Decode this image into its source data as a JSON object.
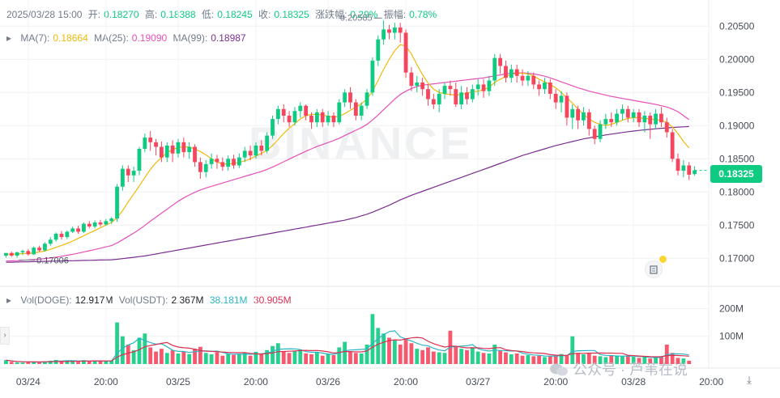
{
  "header": {
    "date": "2025/03/28 15:00",
    "open_label": "开:",
    "open": "0.18270",
    "high_label": "高:",
    "high": "0.18388",
    "low_label": "低:",
    "low": "0.18245",
    "close_label": "收:",
    "close": "0.18325",
    "change_label": "涨跌幅:",
    "change": "0.29%",
    "amp_label": "振幅:",
    "amp": "0.78%"
  },
  "ma": {
    "ma7_label": "MA(7):",
    "ma7": "0.18664",
    "ma25_label": "MA(25):",
    "ma25": "0.19090",
    "ma99_label": "MA(99):",
    "ma99": "0.18987"
  },
  "vol": {
    "doge_label": "Vol(DOGE):",
    "doge": "12.917M",
    "usdt_label": "Vol(USDT):",
    "usdt": "2.367M",
    "usdt_ma_a": "38.181M",
    "usdt_ma_b": "30.905M"
  },
  "last_price": "0.18325",
  "watermark": "BINANCE",
  "source_watermark": "公众号 · 芦苇在说",
  "colors": {
    "up": "#0ecb81",
    "down": "#f6465d",
    "ma7": "#f0b90b",
    "ma25": "#e650b8",
    "ma99": "#7a2f8f",
    "vol_ma_a": "#2bb4c7",
    "vol_ma_b": "#d9304f"
  },
  "chart_data": {
    "type": "candlestick",
    "interval": "1h",
    "ylim": [
      0.1665,
      0.2065
    ],
    "y_ticks": [
      "0.20500",
      "0.20000",
      "0.19500",
      "0.19000",
      "0.18500",
      "0.18000",
      "0.17500",
      "0.17000"
    ],
    "y_tick_values": [
      0.205,
      0.2,
      0.195,
      0.19,
      0.185,
      0.18,
      0.175,
      0.17
    ],
    "x_ticks": [
      "03/24",
      "20:00",
      "03/25",
      "20:00",
      "03/26",
      "20:00",
      "03/27",
      "20:00",
      "03/28",
      "20:00"
    ],
    "x_tick_index": [
      4,
      18,
      31,
      45,
      58,
      72,
      85,
      99,
      113,
      127
    ],
    "annotations": {
      "high_label": "0.20585",
      "high_index": 68,
      "low_label": "0.17006",
      "low_index": 2
    },
    "vol_ylim": [
      0,
      210
    ],
    "vol_ticks": [
      "200M",
      "100M"
    ],
    "vol_tick_values": [
      200,
      100
    ],
    "candles": [
      [
        0.1704,
        0.1708,
        0.1708,
        0.1701
      ],
      [
        0.1708,
        0.1704,
        0.171,
        0.1702
      ],
      [
        0.1704,
        0.1709,
        0.171,
        0.1701
      ],
      [
        0.1709,
        0.1711,
        0.1713,
        0.1705
      ],
      [
        0.1711,
        0.1706,
        0.1714,
        0.1704
      ],
      [
        0.1706,
        0.1716,
        0.1718,
        0.1705
      ],
      [
        0.1716,
        0.1712,
        0.1719,
        0.171
      ],
      [
        0.1712,
        0.1722,
        0.1724,
        0.171
      ],
      [
        0.1722,
        0.1728,
        0.1732,
        0.1719
      ],
      [
        0.1728,
        0.1737,
        0.1739,
        0.1725
      ],
      [
        0.1737,
        0.1732,
        0.1741,
        0.1728
      ],
      [
        0.1732,
        0.174,
        0.1742,
        0.1729
      ],
      [
        0.174,
        0.1745,
        0.1748,
        0.1738
      ],
      [
        0.1745,
        0.174,
        0.1749,
        0.1737
      ],
      [
        0.174,
        0.1752,
        0.1754,
        0.1738
      ],
      [
        0.1752,
        0.1748,
        0.1756,
        0.1745
      ],
      [
        0.1748,
        0.1754,
        0.1757,
        0.1745
      ],
      [
        0.1754,
        0.1751,
        0.1758,
        0.1748
      ],
      [
        0.1751,
        0.1756,
        0.1759,
        0.1749
      ],
      [
        0.1756,
        0.176,
        0.1762,
        0.1752
      ],
      [
        0.176,
        0.1808,
        0.1812,
        0.1755
      ],
      [
        0.1808,
        0.1835,
        0.184,
        0.1802
      ],
      [
        0.1835,
        0.1825,
        0.184,
        0.1815
      ],
      [
        0.1825,
        0.1832,
        0.1838,
        0.1815
      ],
      [
        0.1832,
        0.1865,
        0.1868,
        0.1825
      ],
      [
        0.1865,
        0.1882,
        0.1888,
        0.186
      ],
      [
        0.1882,
        0.1875,
        0.1892,
        0.1862
      ],
      [
        0.1875,
        0.1868,
        0.188,
        0.1855
      ],
      [
        0.1868,
        0.1852,
        0.1876,
        0.1845
      ],
      [
        0.1852,
        0.187,
        0.1875,
        0.1845
      ],
      [
        0.187,
        0.1858,
        0.1878,
        0.1845
      ],
      [
        0.1858,
        0.1875,
        0.188,
        0.1852
      ],
      [
        0.1875,
        0.186,
        0.1882,
        0.1852
      ],
      [
        0.186,
        0.1868,
        0.1875,
        0.185
      ],
      [
        0.1868,
        0.1845,
        0.1872,
        0.1838
      ],
      [
        0.1845,
        0.183,
        0.1852,
        0.182
      ],
      [
        0.183,
        0.1842,
        0.1848,
        0.1822
      ],
      [
        0.1842,
        0.185,
        0.1858,
        0.1835
      ],
      [
        0.185,
        0.1845,
        0.1856,
        0.1835
      ],
      [
        0.1845,
        0.1838,
        0.1852,
        0.1832
      ],
      [
        0.1838,
        0.185,
        0.1855,
        0.1832
      ],
      [
        0.185,
        0.184,
        0.1856,
        0.1835
      ],
      [
        0.184,
        0.1852,
        0.1858,
        0.1836
      ],
      [
        0.1852,
        0.1862,
        0.1868,
        0.1845
      ],
      [
        0.1862,
        0.1855,
        0.187,
        0.1848
      ],
      [
        0.1855,
        0.187,
        0.1875,
        0.185
      ],
      [
        0.187,
        0.1862,
        0.1878,
        0.1855
      ],
      [
        0.1862,
        0.1885,
        0.189,
        0.1858
      ],
      [
        0.1885,
        0.191,
        0.1915,
        0.188
      ],
      [
        0.191,
        0.1925,
        0.193,
        0.1902
      ],
      [
        0.1925,
        0.1915,
        0.1932,
        0.1905
      ],
      [
        0.1915,
        0.1905,
        0.1922,
        0.1898
      ],
      [
        0.1905,
        0.1922,
        0.1928,
        0.19
      ],
      [
        0.1922,
        0.193,
        0.1935,
        0.1912
      ],
      [
        0.193,
        0.1915,
        0.1932,
        0.1908
      ],
      [
        0.1915,
        0.1905,
        0.192,
        0.1895
      ],
      [
        0.1905,
        0.192,
        0.1925,
        0.1898
      ],
      [
        0.192,
        0.1905,
        0.1925,
        0.1898
      ],
      [
        0.1905,
        0.1915,
        0.1922,
        0.19
      ],
      [
        0.1915,
        0.1905,
        0.192,
        0.1898
      ],
      [
        0.1905,
        0.1935,
        0.194,
        0.1902
      ],
      [
        0.1935,
        0.195,
        0.1955,
        0.1928
      ],
      [
        0.195,
        0.1935,
        0.1958,
        0.1925
      ],
      [
        0.1935,
        0.1915,
        0.194,
        0.1908
      ],
      [
        0.1915,
        0.193,
        0.1935,
        0.1908
      ],
      [
        0.193,
        0.195,
        0.1955,
        0.1925
      ],
      [
        0.195,
        0.1998,
        0.2003,
        0.1945
      ],
      [
        0.1998,
        0.203,
        0.2036,
        0.199
      ],
      [
        0.203,
        0.2045,
        0.20585,
        0.2022
      ],
      [
        0.2045,
        0.204,
        0.2052,
        0.203
      ],
      [
        0.204,
        0.2048,
        0.2055,
        0.203
      ],
      [
        0.2048,
        0.204,
        0.2055,
        0.2025
      ],
      [
        0.204,
        0.198,
        0.2045,
        0.1972
      ],
      [
        0.198,
        0.196,
        0.1988,
        0.1952
      ],
      [
        0.196,
        0.1965,
        0.1975,
        0.195
      ],
      [
        0.1965,
        0.1955,
        0.1972,
        0.1945
      ],
      [
        0.1955,
        0.194,
        0.1962,
        0.193
      ],
      [
        0.194,
        0.1932,
        0.1948,
        0.1925
      ],
      [
        0.1932,
        0.1948,
        0.1955,
        0.192
      ],
      [
        0.1948,
        0.196,
        0.1965,
        0.194
      ],
      [
        0.196,
        0.1955,
        0.1968,
        0.1945
      ],
      [
        0.1955,
        0.1932,
        0.1965,
        0.1928
      ],
      [
        0.1932,
        0.195,
        0.196,
        0.1925
      ],
      [
        0.195,
        0.194,
        0.1958,
        0.1932
      ],
      [
        0.194,
        0.1955,
        0.1962,
        0.1935
      ],
      [
        0.1955,
        0.1962,
        0.197,
        0.1945
      ],
      [
        0.1962,
        0.1952,
        0.197,
        0.1942
      ],
      [
        0.1952,
        0.1968,
        0.1975,
        0.1945
      ],
      [
        0.1968,
        0.2002,
        0.2008,
        0.196
      ],
      [
        0.2002,
        0.199,
        0.2008,
        0.1978
      ],
      [
        0.199,
        0.1972,
        0.1998,
        0.1965
      ],
      [
        0.1972,
        0.1985,
        0.1992,
        0.1965
      ],
      [
        0.1985,
        0.1975,
        0.1992,
        0.1965
      ],
      [
        0.1975,
        0.1968,
        0.1985,
        0.196
      ],
      [
        0.1968,
        0.1975,
        0.1982,
        0.196
      ],
      [
        0.1975,
        0.1962,
        0.198,
        0.1955
      ],
      [
        0.1962,
        0.1955,
        0.1968,
        0.1945
      ],
      [
        0.1955,
        0.1965,
        0.1972,
        0.1948
      ],
      [
        0.1965,
        0.1948,
        0.197,
        0.194
      ],
      [
        0.1948,
        0.1935,
        0.1955,
        0.1925
      ],
      [
        0.1935,
        0.1945,
        0.1952,
        0.192
      ],
      [
        0.1945,
        0.1912,
        0.195,
        0.19
      ],
      [
        0.1912,
        0.1925,
        0.1932,
        0.1895
      ],
      [
        0.1925,
        0.1908,
        0.193,
        0.1895
      ],
      [
        0.1908,
        0.192,
        0.1928,
        0.19
      ],
      [
        0.192,
        0.1895,
        0.1925,
        0.1885
      ],
      [
        0.1895,
        0.188,
        0.19,
        0.1872
      ],
      [
        0.188,
        0.1902,
        0.1908,
        0.1875
      ],
      [
        0.1902,
        0.191,
        0.1918,
        0.1895
      ],
      [
        0.191,
        0.1905,
        0.192,
        0.1898
      ],
      [
        0.1905,
        0.1918,
        0.1925,
        0.19
      ],
      [
        0.1918,
        0.1925,
        0.1932,
        0.1908
      ],
      [
        0.1925,
        0.1912,
        0.193,
        0.1905
      ],
      [
        0.1912,
        0.192,
        0.1925,
        0.1905
      ],
      [
        0.192,
        0.1905,
        0.1925,
        0.1898
      ],
      [
        0.1905,
        0.1915,
        0.1922,
        0.189
      ],
      [
        0.1915,
        0.1902,
        0.192,
        0.188
      ],
      [
        0.1902,
        0.1918,
        0.1925,
        0.1895
      ],
      [
        0.1918,
        0.1905,
        0.1928,
        0.1898
      ],
      [
        0.1905,
        0.189,
        0.1912,
        0.1882
      ],
      [
        0.189,
        0.185,
        0.1895,
        0.1845
      ],
      [
        0.185,
        0.1832,
        0.1858,
        0.1825
      ],
      [
        0.1832,
        0.184,
        0.1848,
        0.1822
      ],
      [
        0.184,
        0.1826,
        0.1845,
        0.1818
      ],
      [
        0.1827,
        0.18325,
        0.18388,
        0.18245
      ]
    ],
    "volume": [
      14,
      8,
      6,
      5,
      7,
      9,
      6,
      10,
      12,
      15,
      11,
      13,
      9,
      8,
      14,
      10,
      12,
      9,
      11,
      13,
      150,
      100,
      70,
      50,
      95,
      110,
      60,
      45,
      55,
      40,
      50,
      38,
      44,
      36,
      55,
      62,
      40,
      35,
      42,
      30,
      38,
      33,
      36,
      40,
      30,
      44,
      35,
      50,
      65,
      75,
      45,
      40,
      48,
      52,
      38,
      35,
      42,
      30,
      36,
      32,
      60,
      80,
      45,
      40,
      38,
      70,
      180,
      130,
      110,
      95,
      85,
      70,
      90,
      75,
      55,
      50,
      60,
      45,
      42,
      40,
      120,
      65,
      55,
      50,
      60,
      45,
      40,
      38,
      70,
      50,
      42,
      35,
      38,
      30,
      32,
      28,
      30,
      25,
      28,
      33,
      36,
      30,
      100,
      40,
      35,
      38,
      30,
      28,
      25,
      32,
      30,
      28,
      30,
      26,
      22,
      25,
      20,
      24,
      28,
      70,
      40,
      22,
      20,
      12
    ],
    "ma7": [
      0.1706,
      0.17062,
      0.17065,
      0.1707,
      0.17075,
      0.17082,
      0.17095,
      0.1711,
      0.17135,
      0.17165,
      0.17195,
      0.17225,
      0.1726,
      0.173,
      0.1734,
      0.1738,
      0.1742,
      0.1746,
      0.175,
      0.1754,
      0.1761,
      0.1772,
      0.1785,
      0.1797,
      0.1809,
      0.1822,
      0.1834,
      0.1844,
      0.1852,
      0.1859,
      0.1864,
      0.1867,
      0.1868,
      0.18675,
      0.1865,
      0.1861,
      0.1856,
      0.185,
      0.1845,
      0.18425,
      0.1842,
      0.1843,
      0.18445,
      0.1847,
      0.185,
      0.1854,
      0.1858,
      0.1863,
      0.187,
      0.1879,
      0.1888,
      0.1896,
      0.1903,
      0.191,
      0.1915,
      0.1917,
      0.1917,
      0.1916,
      0.1914,
      0.1913,
      0.1914,
      0.1918,
      0.1923,
      0.1928,
      0.1933,
      0.194,
      0.1952,
      0.1968,
      0.1985,
      0.2,
      0.2013,
      0.2022,
      0.202,
      0.2008,
      0.1992,
      0.1977,
      0.1964,
      0.1955,
      0.195,
      0.1948,
      0.1947,
      0.1946,
      0.1947,
      0.1949,
      0.1951,
      0.1952,
      0.1954,
      0.1958,
      0.1965,
      0.197,
      0.1974,
      0.1977,
      0.1979,
      0.1979,
      0.1978,
      0.1975,
      0.197,
      0.1966,
      0.1962,
      0.1957,
      0.195,
      0.1942,
      0.1934,
      0.1925,
      0.1917,
      0.191,
      0.1905,
      0.1902,
      0.19,
      0.1902,
      0.1905,
      0.1908,
      0.1911,
      0.1912,
      0.1912,
      0.1911,
      0.191,
      0.1909,
      0.1908,
      0.1905,
      0.1898,
      0.1888,
      0.1876,
      0.18664
    ],
    "ma25": [
      0.1696,
      0.16962,
      0.16965,
      0.1697,
      0.16975,
      0.1698,
      0.16988,
      0.16996,
      0.17005,
      0.17016,
      0.1703,
      0.17045,
      0.1706,
      0.17078,
      0.17096,
      0.17114,
      0.17133,
      0.17152,
      0.17172,
      0.17192,
      0.1723,
      0.1728,
      0.1733,
      0.1738,
      0.17435,
      0.17495,
      0.1756,
      0.1762,
      0.1768,
      0.1774,
      0.178,
      0.1786,
      0.1791,
      0.17955,
      0.17995,
      0.1803,
      0.1806,
      0.18085,
      0.1811,
      0.18135,
      0.1816,
      0.18185,
      0.1821,
      0.18235,
      0.1826,
      0.18285,
      0.1831,
      0.1834,
      0.18375,
      0.18415,
      0.18455,
      0.18495,
      0.18535,
      0.18575,
      0.18615,
      0.1865,
      0.18685,
      0.18715,
      0.18745,
      0.18775,
      0.1881,
      0.1885,
      0.1889,
      0.1893,
      0.1897,
      0.1902,
      0.19085,
      0.1916,
      0.1924,
      0.1932,
      0.194,
      0.1947,
      0.1952,
      0.1956,
      0.1959,
      0.1961,
      0.1962,
      0.1963,
      0.1964,
      0.1965,
      0.1966,
      0.1967,
      0.1968,
      0.1969,
      0.197,
      0.1971,
      0.1972,
      0.19735,
      0.1975,
      0.19765,
      0.1978,
      0.1979,
      0.19795,
      0.19795,
      0.1979,
      0.1978,
      0.19765,
      0.19745,
      0.1972,
      0.1969,
      0.1966,
      0.1963,
      0.196,
      0.1957,
      0.19545,
      0.1952,
      0.195,
      0.1948,
      0.1946,
      0.1944,
      0.19425,
      0.1941,
      0.19395,
      0.1938,
      0.19365,
      0.1935,
      0.19335,
      0.1932,
      0.193,
      0.1928,
      0.1925,
      0.1921,
      0.1915,
      0.1909
    ],
    "ma99": [
      0.1694,
      0.16942,
      0.16944,
      0.16946,
      0.16948,
      0.1695,
      0.16952,
      0.16954,
      0.16956,
      0.16958,
      0.1696,
      0.16962,
      0.16964,
      0.16966,
      0.16968,
      0.1697,
      0.16972,
      0.16974,
      0.16976,
      0.16978,
      0.16985,
      0.16995,
      0.17005,
      0.17015,
      0.17025,
      0.17035,
      0.1705,
      0.17065,
      0.1708,
      0.17095,
      0.1711,
      0.17125,
      0.1714,
      0.17155,
      0.1717,
      0.17185,
      0.172,
      0.17215,
      0.1723,
      0.17245,
      0.1726,
      0.17275,
      0.1729,
      0.17305,
      0.1732,
      0.17335,
      0.1735,
      0.17365,
      0.1738,
      0.17395,
      0.1741,
      0.17425,
      0.1744,
      0.17455,
      0.1747,
      0.17485,
      0.175,
      0.17515,
      0.1753,
      0.17545,
      0.1756,
      0.17575,
      0.17595,
      0.17615,
      0.1764,
      0.17665,
      0.17695,
      0.1773,
      0.17765,
      0.178,
      0.1784,
      0.1788,
      0.17915,
      0.1795,
      0.1798,
      0.1801,
      0.1804,
      0.1807,
      0.181,
      0.1813,
      0.1816,
      0.1819,
      0.1822,
      0.1825,
      0.1828,
      0.1831,
      0.1834,
      0.1837,
      0.184,
      0.1843,
      0.1846,
      0.1849,
      0.1852,
      0.1855,
      0.18575,
      0.186,
      0.18625,
      0.1865,
      0.18675,
      0.187,
      0.1872,
      0.1874,
      0.1876,
      0.1878,
      0.188,
      0.18815,
      0.1883,
      0.18845,
      0.1886,
      0.18872,
      0.18884,
      0.18896,
      0.18908,
      0.18918,
      0.18928,
      0.18936,
      0.18944,
      0.18952,
      0.1896,
      0.18966,
      0.18972,
      0.18978,
      0.18982,
      0.18987
    ]
  }
}
